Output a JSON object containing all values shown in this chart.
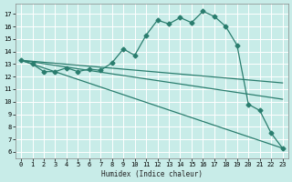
{
  "xlabel": "Humidex (Indice chaleur)",
  "bg_color": "#c8ece8",
  "grid_color": "#ffffff",
  "line_color": "#2a7d6e",
  "xlim": [
    -0.5,
    23.5
  ],
  "ylim": [
    5.5,
    17.8
  ],
  "xticks": [
    0,
    1,
    2,
    3,
    4,
    5,
    6,
    7,
    8,
    9,
    10,
    11,
    12,
    13,
    14,
    15,
    16,
    17,
    18,
    19,
    20,
    21,
    22,
    23
  ],
  "yticks": [
    6,
    7,
    8,
    9,
    10,
    11,
    12,
    13,
    14,
    15,
    16,
    17
  ],
  "main_curve_x": [
    0,
    1,
    2,
    3,
    4,
    5,
    6,
    7,
    8,
    9,
    10,
    11,
    12,
    13,
    14,
    15,
    16,
    17,
    18,
    19,
    20,
    21,
    22,
    23
  ],
  "main_curve_y": [
    13.3,
    13.0,
    12.4,
    12.4,
    12.7,
    12.4,
    12.6,
    12.5,
    13.1,
    14.2,
    13.7,
    15.3,
    16.5,
    16.2,
    16.7,
    16.3,
    17.2,
    16.8,
    16.0,
    14.5,
    9.8,
    9.3,
    7.5,
    6.3
  ],
  "line1_x": [
    0,
    23
  ],
  "line1_y": [
    13.3,
    11.5
  ],
  "line2_x": [
    0,
    23
  ],
  "line2_y": [
    13.3,
    10.2
  ],
  "line3_x": [
    0,
    23
  ],
  "line3_y": [
    13.3,
    6.3
  ],
  "marker_size": 2.5,
  "linewidth": 0.9
}
